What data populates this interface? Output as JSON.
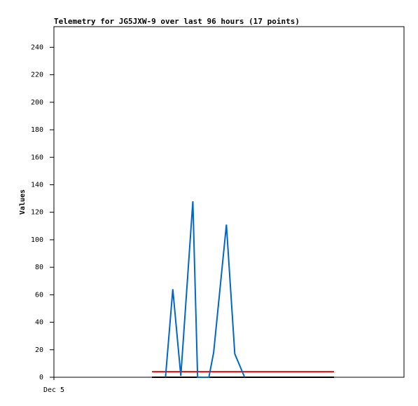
{
  "chart_data": {
    "type": "line",
    "title": "Telemetry for JG5JXW-9 over last 96 hours (17 points)",
    "y_label": "Values",
    "xlim": [
      0,
      96
    ],
    "xticks": [
      {
        "value": 0,
        "label": "Dec 5"
      }
    ],
    "ylim": [
      0,
      255
    ],
    "yticks": [
      0,
      20,
      40,
      60,
      80,
      100,
      120,
      140,
      160,
      180,
      200,
      220,
      240
    ],
    "series": [
      {
        "color": "#000000",
        "x": [
          26.9,
          76.8
        ],
        "values": [
          0,
          0
        ]
      },
      {
        "color": "#ff0000",
        "x": [
          26.9,
          76.8
        ],
        "values": [
          4,
          4
        ]
      },
      {
        "color": "#0066cc",
        "x": [
          30.6,
          32.6,
          34.8,
          38.1,
          39.4,
          42.5,
          43.8,
          47.3,
          49.6,
          52.3
        ],
        "values": [
          0,
          64,
          1,
          128,
          0,
          0,
          18,
          111,
          17,
          0
        ]
      }
    ]
  }
}
